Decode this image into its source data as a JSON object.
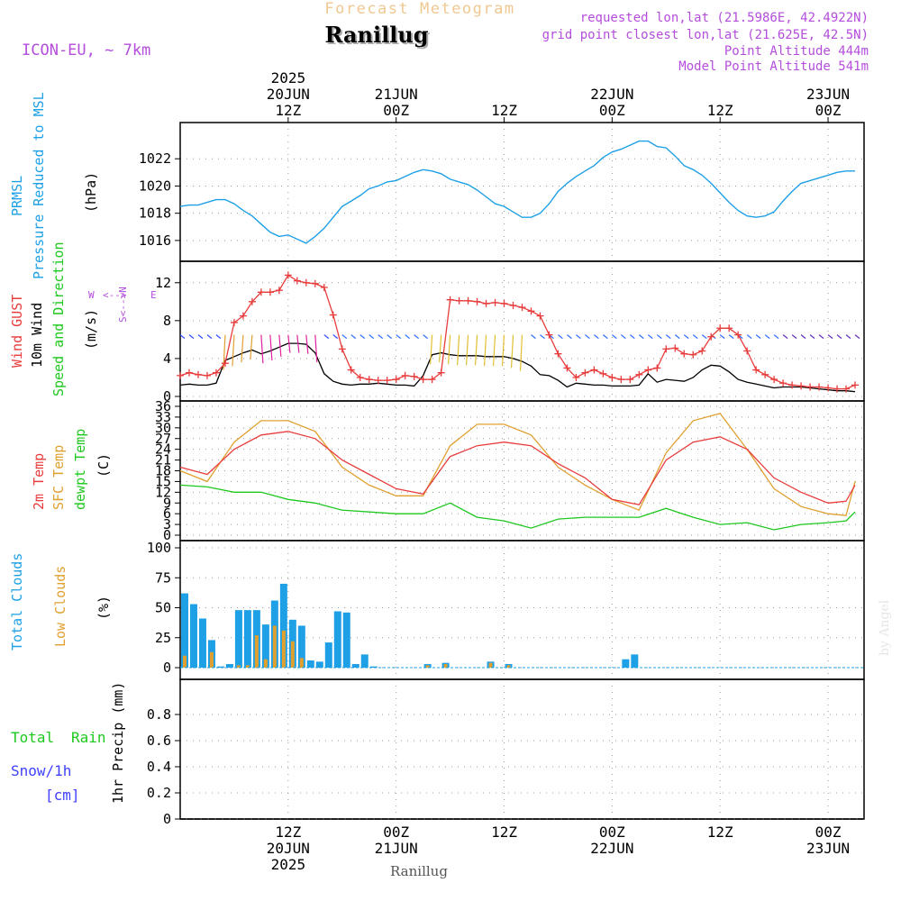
{
  "header": {
    "product": "Forecast Meteogram",
    "location": "Ranillug",
    "model": "ICON-EU, ~ 7km",
    "requested": "requested lon,lat (21.5986E, 42.4922N)",
    "gridpoint": "grid point closest lon,lat (21.625E, 42.5N)",
    "point_alt": "Point Altitude 444m",
    "model_alt": "Model Point Altitude 541m",
    "credit": "by Angel",
    "footer_location": "Ranillug"
  },
  "time_axis": {
    "top_labels": [
      {
        "hour": 12,
        "lines": [
          "2025",
          "20JUN",
          "12Z"
        ]
      },
      {
        "hour": 24,
        "lines": [
          "21JUN",
          "00Z"
        ]
      },
      {
        "hour": 36,
        "lines": [
          "12Z"
        ]
      },
      {
        "hour": 48,
        "lines": [
          "22JUN",
          "00Z"
        ]
      },
      {
        "hour": 60,
        "lines": [
          "12Z"
        ]
      },
      {
        "hour": 72,
        "lines": [
          "23JUN",
          "00Z"
        ]
      }
    ],
    "bottom_labels": [
      {
        "hour": 12,
        "lines": [
          "12Z",
          "20JUN",
          "2025"
        ]
      },
      {
        "hour": 24,
        "lines": [
          "00Z",
          "21JUN"
        ]
      },
      {
        "hour": 36,
        "lines": [
          "12Z"
        ]
      },
      {
        "hour": 48,
        "lines": [
          "00Z",
          "22JUN"
        ]
      },
      {
        "hour": 60,
        "lines": [
          "12Z"
        ]
      },
      {
        "hour": 72,
        "lines": [
          "00Z",
          "23JUN"
        ]
      }
    ]
  },
  "colors": {
    "pressure": "#1ea0e6",
    "gust": "#e83c3c",
    "wind": "#000000",
    "t2m": "#e83c3c",
    "tsfc": "#e0a030",
    "dewpt": "#1ec81e",
    "total_clouds": "#1ea0e6",
    "low_clouds": "#e0a030",
    "rain": "#1ec81e",
    "snow": "#4040ff",
    "purple": "#b44ddc",
    "title_orange": "#f0c890"
  },
  "panels": {
    "pressure": {
      "labels": [
        "PRMSL",
        "Pressure Reduced to MSL"
      ],
      "unit": "(hPa)"
    },
    "wind": {
      "labels": [
        "Wind GUST",
        "10m Wind",
        "Speed and Direction"
      ],
      "unit": "(m/s)",
      "compass": {
        "n": "N",
        "s": "S",
        "w": "W",
        "e": "E",
        "ns": "S<-->N",
        "we": "<-->"
      }
    },
    "temp": {
      "labels": [
        "2m Temp",
        "SFC Temp",
        "dewpt Temp"
      ],
      "unit": "(C)"
    },
    "clouds": {
      "labels": [
        "Total Clouds",
        "Low Clouds"
      ],
      "unit": "(%)"
    },
    "precip": {
      "labels": [
        "Total",
        "Rain",
        "Snow/1h",
        "[cm]"
      ],
      "unit": "1hr Precip (mm)"
    }
  },
  "chart_data": [
    {
      "type": "line",
      "name": "PRMSL",
      "ylabel": "(hPa)",
      "ylim": [
        1015,
        1024
      ],
      "yticks": [
        1016,
        1018,
        1020,
        1022
      ],
      "grid": true,
      "series": [
        {
          "name": "PRMSL",
          "x": [
            0,
            1,
            2,
            3,
            4,
            5,
            6,
            7,
            8,
            9,
            10,
            11,
            12,
            13,
            14,
            15,
            16,
            17,
            18,
            19,
            20,
            21,
            22,
            23,
            24,
            25,
            26,
            27,
            28,
            29,
            30,
            31,
            32,
            33,
            34,
            35,
            36,
            37,
            38,
            39,
            40,
            41,
            42,
            43,
            44,
            45,
            46,
            47,
            48,
            49,
            50,
            51,
            52,
            53,
            54,
            55,
            56,
            57,
            58,
            59,
            60,
            61,
            62,
            63,
            64,
            65,
            66,
            67,
            68,
            69,
            70,
            71,
            72,
            73,
            74,
            75
          ],
          "values": [
            1018.5,
            1018.6,
            1018.6,
            1018.8,
            1019.0,
            1019.0,
            1018.7,
            1018.2,
            1017.8,
            1017.2,
            1016.6,
            1016.3,
            1016.4,
            1016.1,
            1015.8,
            1016.3,
            1016.9,
            1017.7,
            1018.5,
            1018.9,
            1019.3,
            1019.8,
            1020.0,
            1020.3,
            1020.4,
            1020.7,
            1021.0,
            1021.2,
            1021.1,
            1020.9,
            1020.5,
            1020.3,
            1020.1,
            1019.7,
            1019.2,
            1018.7,
            1018.5,
            1018.1,
            1017.7,
            1017.7,
            1018.0,
            1018.7,
            1019.6,
            1020.2,
            1020.7,
            1021.1,
            1021.5,
            1022.1,
            1022.5,
            1022.7,
            1023.0,
            1023.3,
            1023.3,
            1022.9,
            1022.8,
            1022.2,
            1021.5,
            1021.2,
            1020.8,
            1020.2,
            1019.5,
            1018.8,
            1018.2,
            1017.8,
            1017.7,
            1017.8,
            1018.1,
            1018.9,
            1019.6,
            1020.2,
            1020.4,
            1020.6,
            1020.8,
            1021.0,
            1021.1,
            1021.1
          ]
        }
      ]
    },
    {
      "type": "line",
      "name": "Wind",
      "ylabel": "(m/s)",
      "ylim": [
        0,
        13.5
      ],
      "yticks": [
        0,
        4,
        8,
        12
      ],
      "grid": true,
      "series": [
        {
          "name": "Wind GUST",
          "x": [
            0,
            1,
            2,
            3,
            4,
            5,
            6,
            7,
            8,
            9,
            10,
            11,
            12,
            13,
            14,
            15,
            16,
            17,
            18,
            19,
            20,
            21,
            22,
            23,
            24,
            25,
            26,
            27,
            28,
            29,
            30,
            31,
            32,
            33,
            34,
            35,
            36,
            37,
            38,
            39,
            40,
            41,
            42,
            43,
            44,
            45,
            46,
            47,
            48,
            49,
            50,
            51,
            52,
            53,
            54,
            55,
            56,
            57,
            58,
            59,
            60,
            61,
            62,
            63,
            64,
            65,
            66,
            67,
            68,
            69,
            70,
            71,
            72,
            73,
            74,
            75
          ],
          "values": [
            2.2,
            2.5,
            2.3,
            2.2,
            2.5,
            3.5,
            7.8,
            8.5,
            10.0,
            11.0,
            11.0,
            11.2,
            12.8,
            12.2,
            12.0,
            11.9,
            11.5,
            8.6,
            5.0,
            2.8,
            2.0,
            1.8,
            1.7,
            1.7,
            1.8,
            2.2,
            2.1,
            1.8,
            1.8,
            2.5,
            10.2,
            10.1,
            10.1,
            10.0,
            9.8,
            9.9,
            9.8,
            9.6,
            9.4,
            9.0,
            8.5,
            6.5,
            4.5,
            3.0,
            2.0,
            2.5,
            2.8,
            2.4,
            2.0,
            1.8,
            1.8,
            2.3,
            2.8,
            3.0,
            5.0,
            5.1,
            4.5,
            4.4,
            4.8,
            6.3,
            7.2,
            7.2,
            6.5,
            4.8,
            2.8,
            2.3,
            1.8,
            1.4,
            1.2,
            1.1,
            1.0,
            1.0,
            0.9,
            0.8,
            0.8,
            1.2
          ]
        },
        {
          "name": "10m Wind",
          "x": [
            0,
            1,
            2,
            3,
            4,
            5,
            6,
            7,
            8,
            9,
            10,
            11,
            12,
            13,
            14,
            15,
            16,
            17,
            18,
            19,
            20,
            21,
            22,
            23,
            24,
            25,
            26,
            27,
            28,
            29,
            30,
            31,
            32,
            33,
            34,
            35,
            36,
            37,
            38,
            39,
            40,
            41,
            42,
            43,
            44,
            45,
            46,
            47,
            48,
            49,
            50,
            51,
            52,
            53,
            54,
            55,
            56,
            57,
            58,
            59,
            60,
            61,
            62,
            63,
            64,
            65,
            66,
            67,
            68,
            69,
            70,
            71,
            72,
            73,
            74,
            75
          ],
          "values": [
            1.2,
            1.3,
            1.2,
            1.2,
            1.4,
            3.8,
            4.2,
            4.6,
            4.9,
            4.5,
            4.8,
            5.2,
            5.6,
            5.6,
            5.5,
            4.6,
            2.4,
            1.6,
            1.3,
            1.2,
            1.3,
            1.3,
            1.4,
            1.3,
            1.2,
            1.2,
            1.1,
            2.2,
            4.4,
            4.6,
            4.4,
            4.3,
            4.3,
            4.3,
            4.2,
            4.2,
            4.2,
            4.0,
            3.7,
            3.2,
            2.3,
            2.2,
            1.7,
            1.0,
            1.4,
            1.3,
            1.2,
            1.2,
            1.1,
            1.1,
            1.1,
            1.2,
            2.4,
            1.5,
            1.8,
            1.7,
            1.6,
            2.0,
            2.8,
            3.3,
            3.2,
            2.6,
            1.8,
            1.5,
            1.3,
            1.1,
            0.9,
            1.0,
            1.0,
            1.0,
            0.9,
            0.8,
            0.7,
            0.6,
            0.6,
            0.5
          ]
        }
      ]
    },
    {
      "type": "line",
      "name": "Temperature",
      "ylabel": "(C)",
      "ylim": [
        0,
        36
      ],
      "yticks": [
        0,
        3,
        6,
        9,
        12,
        15,
        18,
        21,
        24,
        27,
        30,
        33,
        36
      ],
      "grid": true,
      "series": [
        {
          "name": "2m Temp",
          "x": [
            0,
            3,
            6,
            9,
            12,
            15,
            18,
            21,
            24,
            27,
            30,
            33,
            36,
            39,
            42,
            45,
            48,
            51,
            54,
            57,
            60,
            63,
            66,
            69,
            72,
            74,
            75
          ],
          "values": [
            19,
            17,
            24,
            28,
            29,
            27,
            21,
            17,
            13,
            11.5,
            22,
            25,
            26,
            25,
            20,
            16,
            10,
            8.5,
            21,
            26,
            27.5,
            24,
            16,
            12,
            9,
            9.5,
            14
          ]
        },
        {
          "name": "SFC Temp",
          "x": [
            0,
            3,
            6,
            9,
            12,
            15,
            18,
            21,
            24,
            27,
            30,
            33,
            36,
            39,
            42,
            45,
            48,
            51,
            54,
            57,
            60,
            63,
            66,
            69,
            72,
            74,
            75
          ],
          "values": [
            18,
            15,
            26,
            32,
            32,
            29,
            19,
            14,
            11,
            11,
            25,
            31,
            31,
            28,
            19,
            14,
            10,
            7,
            23,
            32,
            34,
            24,
            13,
            8,
            6,
            5.5,
            15
          ]
        },
        {
          "name": "dewpt Temp",
          "x": [
            0,
            3,
            6,
            9,
            12,
            15,
            18,
            21,
            24,
            27,
            30,
            33,
            36,
            39,
            42,
            45,
            48,
            51,
            54,
            57,
            60,
            63,
            66,
            69,
            72,
            74,
            75
          ],
          "values": [
            14,
            13.5,
            12,
            12,
            10,
            9,
            7,
            6.5,
            6,
            6,
            9,
            5,
            4,
            2,
            4.5,
            5,
            5,
            5,
            7.5,
            5,
            3,
            3.5,
            1.5,
            3,
            3.5,
            4,
            6.5
          ]
        }
      ]
    },
    {
      "type": "bar",
      "name": "Clouds",
      "ylabel": "(%)",
      "ylim": [
        0,
        100
      ],
      "yticks": [
        0,
        25,
        50,
        75,
        100
      ],
      "grid": true,
      "series": [
        {
          "name": "Total Clouds",
          "x": [
            0,
            1,
            2,
            3,
            4,
            5,
            6,
            7,
            8,
            9,
            10,
            11,
            12,
            13,
            14,
            15,
            16,
            17,
            18,
            19,
            20,
            21,
            27,
            29,
            34,
            36,
            49,
            50
          ],
          "values": [
            62,
            53,
            41,
            23,
            1,
            3,
            48,
            48,
            48,
            36,
            56,
            70,
            40,
            35,
            6,
            5,
            21,
            47,
            46,
            3,
            11,
            1,
            3,
            4,
            5,
            3,
            7,
            11
          ]
        },
        {
          "name": "Low Clouds",
          "x": [
            0,
            3,
            6,
            7,
            8,
            9,
            10,
            11,
            12,
            13,
            27,
            29,
            34,
            36
          ],
          "values": [
            10,
            13,
            2,
            2,
            27,
            7,
            35,
            31,
            22,
            8,
            2,
            3,
            4,
            2
          ]
        }
      ]
    },
    {
      "type": "bar",
      "name": "Precipitation",
      "ylabel": "1hr Precip (mm)",
      "ylim": [
        0,
        1.0
      ],
      "yticks": [
        0,
        0.2,
        0.4,
        0.6,
        0.8
      ],
      "grid": true,
      "series": [
        {
          "name": "Total",
          "values": []
        },
        {
          "name": "Rain",
          "values": []
        },
        {
          "name": "Snow/1h [cm]",
          "values": []
        }
      ]
    }
  ]
}
